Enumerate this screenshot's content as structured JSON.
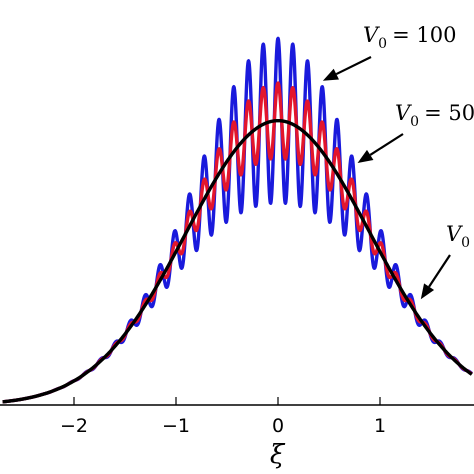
{
  "chart_data": {
    "type": "line",
    "title": "",
    "xlabel": "ξ",
    "ylabel": "",
    "xlim": [
      -2.7,
      1.9
    ],
    "ylim": [
      0,
      1.62
    ],
    "grid": false,
    "legend": "none",
    "x_ticks": [
      {
        "value": -2,
        "label": "−2"
      },
      {
        "value": -1,
        "label": "−1"
      },
      {
        "value": 0,
        "label": "0"
      },
      {
        "value": 1,
        "label": "1"
      }
    ],
    "series": [
      {
        "color": "#1a1adc",
        "peak": 1.45,
        "modulation_amplitude": 0.35,
        "oscillation_period": 0.145
      },
      {
        "color": "#e3162c",
        "peak": 1.31,
        "modulation_amplitude": 0.16,
        "oscillation_period": 0.145
      },
      {
        "color": "#000000",
        "peak": 1.21,
        "modulation_amplitude": 0.0,
        "oscillation_period": 0.145
      }
    ],
    "annotations": [
      {
        "symbol": "V",
        "subscript": "0",
        "value": "= 100",
        "pointer_x": 0.44,
        "pointer_y": 1.38
      },
      {
        "symbol": "V",
        "subscript": "0",
        "value": "= 50",
        "pointer_x": 0.78,
        "pointer_y": 1.03
      },
      {
        "symbol": "V",
        "subscript": "0",
        "value": "",
        "pointer_x": 1.4,
        "pointer_y": 0.45
      }
    ]
  }
}
